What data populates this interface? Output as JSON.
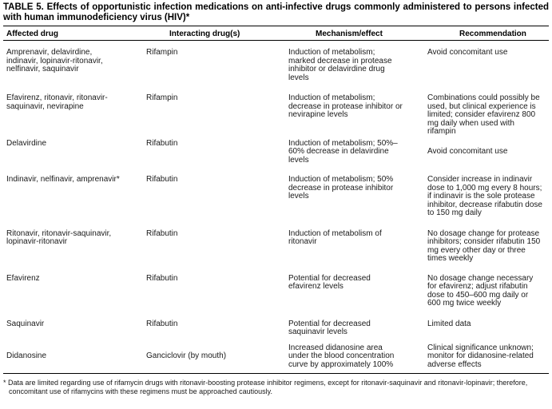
{
  "doc": {
    "title": "TABLE 5. Effects of opportunistic infection medications on anti-infective drugs commonly administered to persons infected with human immunodeficiency virus (HIV)*",
    "columns": [
      "Affected drug",
      "Interacting drug(s)",
      "Mechanism/effect",
      "Recommendation"
    ],
    "rows": [
      {
        "affected_drug": "Amprenavir, delavirdine, indinavir, lopinavir-ritonavir, nelfinavir, saquinavir",
        "interacting_drug": "Rifampin",
        "mechanism": "Induction of metabolism; marked decrease in protease inhibitor or delavirdine drug levels",
        "recommendation": "Avoid concomitant use"
      },
      {
        "affected_drug": "Efavirenz, ritonavir, ritonavir-saquinavir, nevirapine",
        "interacting_drug": "Rifampin",
        "mechanism": "Induction of metabolism; decrease in protease inhibitor or nevirapine levels",
        "recommendation": "Combinations could possibly be used, but clinical experience is limited; consider efavirenz 800 mg daily when used with rifampin"
      },
      {
        "affected_drug": "Delavirdine",
        "interacting_drug": "Rifabutin",
        "mechanism": "Induction of metabolism; 50%–60% decrease in delavirdine levels",
        "recommendation": "Avoid concomitant use"
      },
      {
        "affected_drug": "Indinavir, nelfinavir, amprenavir*",
        "interacting_drug": "Rifabutin",
        "mechanism": "Induction of metabolism; 50% decrease in protease inhibitor levels",
        "recommendation": "Consider increase in indinavir dose to 1,000 mg every 8 hours; if indinavir is the sole protease inhibitor, decrease rifabutin dose to 150 mg daily"
      },
      {
        "affected_drug": "Ritonavir, ritonavir-saquinavir, lopinavir-ritonavir",
        "interacting_drug": "Rifabutin",
        "mechanism": "Induction of metabolism of ritonavir",
        "recommendation": "No dosage change for protease inhibitors; consider rifabutin 150 mg every other day or three times weekly"
      },
      {
        "affected_drug": "Efavirenz",
        "interacting_drug": "Rifabutin",
        "mechanism": "Potential for decreased efavirenz levels",
        "recommendation": "No dosage change necessary for efavirenz; adjust rifabutin dose to 450–600 mg daily or 600 mg twice weekly"
      },
      {
        "affected_drug": "Saquinavir",
        "interacting_drug": "Rifabutin",
        "mechanism": "Potential for decreased saquinavir levels",
        "recommendation": "Limited data"
      },
      {
        "affected_drug": "Didanosine",
        "interacting_drug": "Ganciclovir (by mouth)",
        "mechanism": "Increased didanosine area under the blood concentration curve by approximately 100%",
        "recommendation": "Clinical significance unknown; monitor for didanosine-related adverse effects"
      }
    ],
    "footnote": "* Data are limited regarding use of rifamycin drugs with ritonavir-boosting protease inhibitor regimens, except for ritonavir-saquinavir and ritonavir-lopinavir; therefore, concomitant use of rifamycins with these regimens must be approached cautiously."
  },
  "colors": {
    "background": "#ffffff",
    "text": "#1a1a1a",
    "rule": "#000000"
  }
}
